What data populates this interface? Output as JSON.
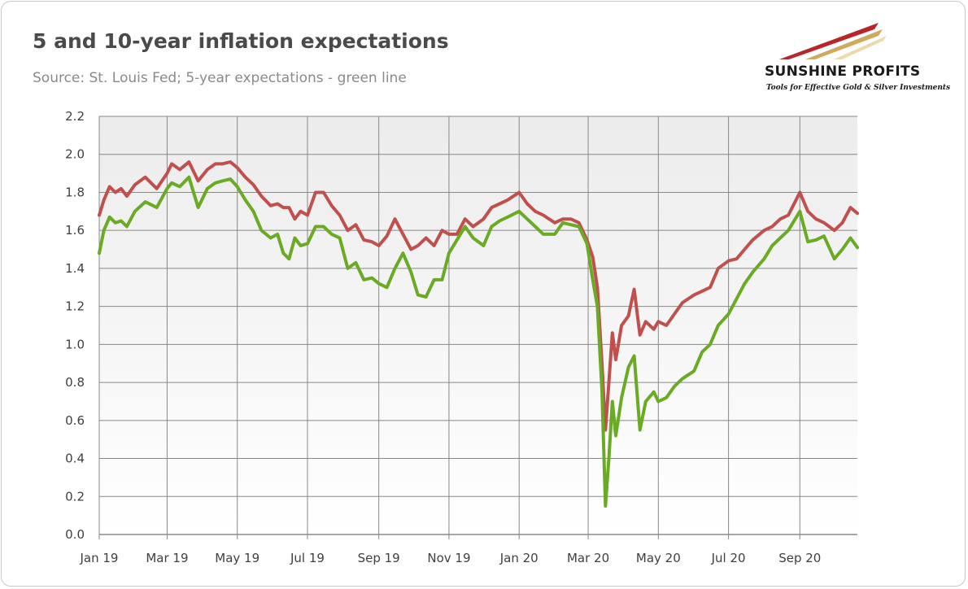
{
  "title": "5 and 10-year inflation expectations",
  "subtitle": "Source: St. Louis Fed; 5-year expectations - green line",
  "logo": {
    "name": "SUNSHINE PROFITS",
    "tagline": "Tools for Effective Gold & Silver Investments"
  },
  "colors": {
    "ten_year": "#c0504d",
    "five_year": "#6aaa24",
    "logo_red": "#b8262b",
    "logo_gold": "#c9a14a"
  },
  "chart_data": {
    "type": "line",
    "title": "5 and 10-year inflation expectations",
    "xlabel": "",
    "ylabel": "",
    "ylim": [
      0,
      2.2
    ],
    "xlim": [
      "2019-01-01",
      "2020-10-21"
    ],
    "grid": true,
    "legend": "none",
    "x_ticks": [
      "Jan 19",
      "Mar 19",
      "May 19",
      "Jul 19",
      "Sep 19",
      "Nov 19",
      "Jan 20",
      "Mar 20",
      "May 20",
      "Jul 20",
      "Sep 20"
    ],
    "x_tick_dates": [
      "2019-01-01",
      "2019-03-01",
      "2019-05-01",
      "2019-07-01",
      "2019-09-01",
      "2019-11-01",
      "2020-01-01",
      "2020-03-01",
      "2020-05-01",
      "2020-07-01",
      "2020-09-01"
    ],
    "y_ticks": [
      "0.0",
      "0.2",
      "0.4",
      "0.6",
      "0.8",
      "1.0",
      "1.2",
      "1.4",
      "1.6",
      "1.8",
      "2.0",
      "2.2"
    ],
    "series": [
      {
        "key": "ten_year",
        "x": [
          "2019-01-01",
          "2019-01-05",
          "2019-01-10",
          "2019-01-15",
          "2019-01-20",
          "2019-01-25",
          "2019-02-01",
          "2019-02-10",
          "2019-02-20",
          "2019-03-01",
          "2019-03-05",
          "2019-03-12",
          "2019-03-20",
          "2019-03-28",
          "2019-04-05",
          "2019-04-12",
          "2019-04-18",
          "2019-04-25",
          "2019-05-01",
          "2019-05-08",
          "2019-05-15",
          "2019-05-22",
          "2019-05-30",
          "2019-06-05",
          "2019-06-10",
          "2019-06-15",
          "2019-06-20",
          "2019-06-25",
          "2019-07-01",
          "2019-07-08",
          "2019-07-15",
          "2019-07-22",
          "2019-07-29",
          "2019-08-05",
          "2019-08-12",
          "2019-08-19",
          "2019-08-26",
          "2019-09-01",
          "2019-09-08",
          "2019-09-15",
          "2019-09-22",
          "2019-09-29",
          "2019-10-05",
          "2019-10-12",
          "2019-10-19",
          "2019-10-26",
          "2019-11-01",
          "2019-11-08",
          "2019-11-15",
          "2019-11-22",
          "2019-12-01",
          "2019-12-08",
          "2019-12-15",
          "2019-12-22",
          "2020-01-01",
          "2020-01-08",
          "2020-01-15",
          "2020-01-22",
          "2020-02-01",
          "2020-02-08",
          "2020-02-15",
          "2020-02-22",
          "2020-02-29",
          "2020-03-05",
          "2020-03-09",
          "2020-03-13",
          "2020-03-16",
          "2020-03-19",
          "2020-03-22",
          "2020-03-25",
          "2020-03-30",
          "2020-04-05",
          "2020-04-10",
          "2020-04-15",
          "2020-04-20",
          "2020-04-27",
          "2020-05-01",
          "2020-05-08",
          "2020-05-15",
          "2020-05-22",
          "2020-06-01",
          "2020-06-08",
          "2020-06-15",
          "2020-06-22",
          "2020-07-01",
          "2020-07-08",
          "2020-07-15",
          "2020-07-22",
          "2020-08-01",
          "2020-08-08",
          "2020-08-15",
          "2020-08-22",
          "2020-09-01",
          "2020-09-08",
          "2020-09-15",
          "2020-09-22",
          "2020-10-01",
          "2020-10-08",
          "2020-10-15",
          "2020-10-21"
        ],
        "y": [
          1.68,
          1.76,
          1.83,
          1.8,
          1.82,
          1.78,
          1.84,
          1.88,
          1.82,
          1.9,
          1.95,
          1.92,
          1.96,
          1.86,
          1.92,
          1.95,
          1.95,
          1.96,
          1.93,
          1.88,
          1.84,
          1.78,
          1.73,
          1.74,
          1.72,
          1.72,
          1.66,
          1.7,
          1.68,
          1.8,
          1.8,
          1.73,
          1.68,
          1.6,
          1.63,
          1.55,
          1.54,
          1.52,
          1.57,
          1.66,
          1.58,
          1.5,
          1.52,
          1.56,
          1.52,
          1.6,
          1.58,
          1.58,
          1.66,
          1.62,
          1.66,
          1.72,
          1.74,
          1.76,
          1.8,
          1.74,
          1.7,
          1.68,
          1.64,
          1.66,
          1.66,
          1.64,
          1.55,
          1.46,
          1.3,
          0.9,
          0.55,
          0.8,
          1.06,
          0.92,
          1.1,
          1.15,
          1.29,
          1.05,
          1.12,
          1.08,
          1.12,
          1.1,
          1.16,
          1.22,
          1.26,
          1.28,
          1.3,
          1.4,
          1.44,
          1.45,
          1.5,
          1.55,
          1.6,
          1.62,
          1.66,
          1.68,
          1.8,
          1.7,
          1.66,
          1.64,
          1.6,
          1.64,
          1.72,
          1.69
        ]
      },
      {
        "key": "five_year",
        "x": [
          "2019-01-01",
          "2019-01-05",
          "2019-01-10",
          "2019-01-15",
          "2019-01-20",
          "2019-01-25",
          "2019-02-01",
          "2019-02-10",
          "2019-02-20",
          "2019-03-01",
          "2019-03-05",
          "2019-03-12",
          "2019-03-20",
          "2019-03-28",
          "2019-04-05",
          "2019-04-12",
          "2019-04-18",
          "2019-04-25",
          "2019-05-01",
          "2019-05-08",
          "2019-05-15",
          "2019-05-22",
          "2019-05-30",
          "2019-06-05",
          "2019-06-10",
          "2019-06-15",
          "2019-06-20",
          "2019-06-25",
          "2019-07-01",
          "2019-07-08",
          "2019-07-15",
          "2019-07-22",
          "2019-07-29",
          "2019-08-05",
          "2019-08-12",
          "2019-08-19",
          "2019-08-26",
          "2019-09-01",
          "2019-09-08",
          "2019-09-15",
          "2019-09-22",
          "2019-09-29",
          "2019-10-05",
          "2019-10-12",
          "2019-10-19",
          "2019-10-26",
          "2019-11-01",
          "2019-11-08",
          "2019-11-15",
          "2019-11-22",
          "2019-12-01",
          "2019-12-08",
          "2019-12-15",
          "2019-12-22",
          "2020-01-01",
          "2020-01-08",
          "2020-01-15",
          "2020-01-22",
          "2020-02-01",
          "2020-02-08",
          "2020-02-15",
          "2020-02-22",
          "2020-02-29",
          "2020-03-05",
          "2020-03-09",
          "2020-03-13",
          "2020-03-16",
          "2020-03-19",
          "2020-03-22",
          "2020-03-25",
          "2020-03-30",
          "2020-04-05",
          "2020-04-10",
          "2020-04-15",
          "2020-04-20",
          "2020-04-27",
          "2020-05-01",
          "2020-05-08",
          "2020-05-15",
          "2020-05-22",
          "2020-06-01",
          "2020-06-08",
          "2020-06-15",
          "2020-06-22",
          "2020-07-01",
          "2020-07-08",
          "2020-07-15",
          "2020-07-22",
          "2020-08-01",
          "2020-08-08",
          "2020-08-15",
          "2020-08-22",
          "2020-09-01",
          "2020-09-08",
          "2020-09-15",
          "2020-09-22",
          "2020-10-01",
          "2020-10-08",
          "2020-10-15",
          "2020-10-21"
        ],
        "y": [
          1.48,
          1.6,
          1.67,
          1.64,
          1.65,
          1.62,
          1.7,
          1.75,
          1.72,
          1.82,
          1.85,
          1.83,
          1.88,
          1.72,
          1.82,
          1.85,
          1.86,
          1.87,
          1.83,
          1.76,
          1.7,
          1.6,
          1.56,
          1.58,
          1.48,
          1.45,
          1.56,
          1.52,
          1.53,
          1.62,
          1.62,
          1.58,
          1.56,
          1.4,
          1.43,
          1.34,
          1.35,
          1.32,
          1.3,
          1.4,
          1.48,
          1.38,
          1.26,
          1.25,
          1.34,
          1.34,
          1.48,
          1.55,
          1.62,
          1.56,
          1.52,
          1.62,
          1.65,
          1.67,
          1.7,
          1.66,
          1.62,
          1.58,
          1.58,
          1.64,
          1.63,
          1.62,
          1.53,
          1.34,
          1.2,
          0.76,
          0.15,
          0.4,
          0.7,
          0.52,
          0.72,
          0.88,
          0.94,
          0.55,
          0.7,
          0.75,
          0.7,
          0.72,
          0.78,
          0.82,
          0.86,
          0.96,
          1.0,
          1.1,
          1.16,
          1.24,
          1.32,
          1.38,
          1.45,
          1.52,
          1.56,
          1.6,
          1.7,
          1.54,
          1.55,
          1.57,
          1.45,
          1.5,
          1.56,
          1.51
        ]
      }
    ]
  }
}
